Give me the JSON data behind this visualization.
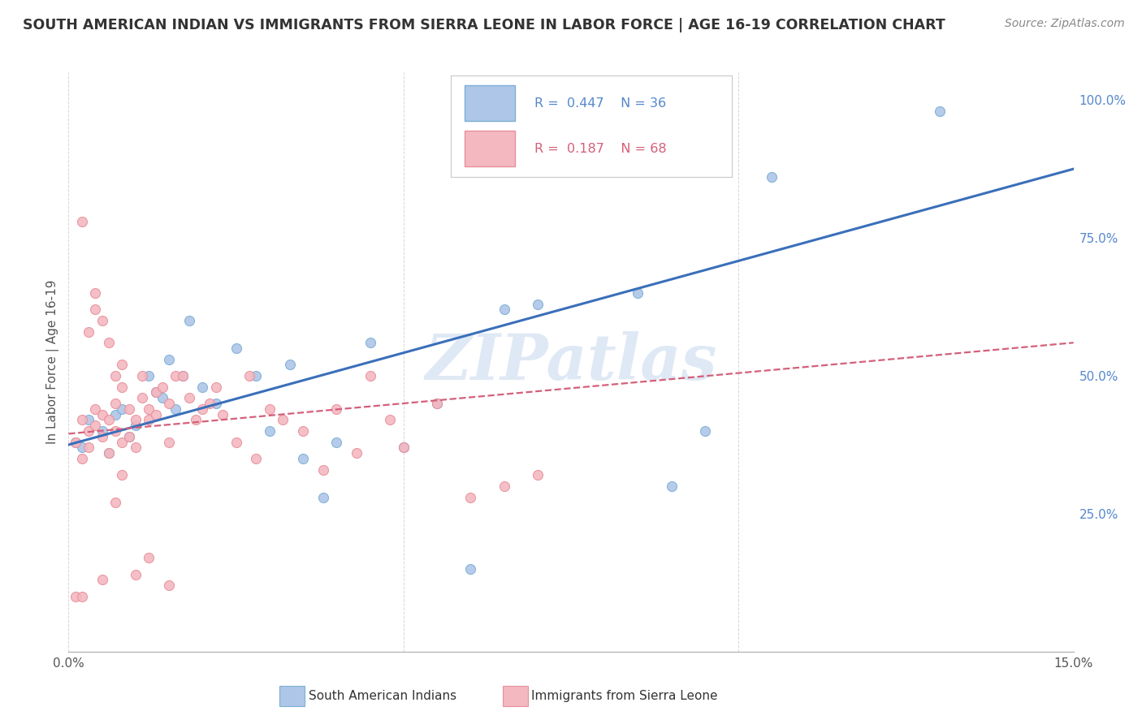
{
  "title": "SOUTH AMERICAN INDIAN VS IMMIGRANTS FROM SIERRA LEONE IN LABOR FORCE | AGE 16-19 CORRELATION CHART",
  "source": "Source: ZipAtlas.com",
  "ylabel": "In Labor Force | Age 16-19",
  "xlim": [
    0.0,
    0.15
  ],
  "ylim": [
    0.0,
    1.05
  ],
  "xticks": [
    0.0,
    0.05,
    0.1,
    0.15
  ],
  "xticklabels": [
    "0.0%",
    "",
    "",
    "15.0%"
  ],
  "yticks_right": [
    0.25,
    0.5,
    0.75,
    1.0
  ],
  "yticklabels_right": [
    "25.0%",
    "50.0%",
    "75.0%",
    "100.0%"
  ],
  "blue_fill": "#aec6e8",
  "blue_edge": "#7bafd4",
  "pink_fill": "#f4b8c1",
  "pink_edge": "#e8909a",
  "blue_line_color": "#3a6fba",
  "pink_line_color": "#d4607a",
  "right_tick_color": "#5588cc",
  "watermark": "ZIPatlas",
  "legend_r1": "R =  0.447",
  "legend_n1": "N = 36",
  "legend_r2": "R =  0.187",
  "legend_n2": "N = 68",
  "blue_scatter_x": [
    0.001,
    0.002,
    0.003,
    0.005,
    0.006,
    0.007,
    0.008,
    0.009,
    0.01,
    0.012,
    0.013,
    0.014,
    0.015,
    0.016,
    0.017,
    0.018,
    0.02,
    0.022,
    0.025,
    0.028,
    0.03,
    0.033,
    0.035,
    0.038,
    0.04,
    0.045,
    0.05,
    0.055,
    0.06,
    0.065,
    0.07,
    0.085,
    0.09,
    0.095,
    0.105,
    0.13
  ],
  "blue_scatter_y": [
    0.38,
    0.37,
    0.42,
    0.4,
    0.36,
    0.43,
    0.44,
    0.39,
    0.41,
    0.5,
    0.47,
    0.46,
    0.53,
    0.44,
    0.5,
    0.6,
    0.48,
    0.45,
    0.55,
    0.5,
    0.4,
    0.52,
    0.35,
    0.28,
    0.38,
    0.56,
    0.37,
    0.45,
    0.15,
    0.62,
    0.63,
    0.65,
    0.3,
    0.4,
    0.86,
    0.98
  ],
  "pink_scatter_x": [
    0.001,
    0.001,
    0.002,
    0.002,
    0.002,
    0.003,
    0.003,
    0.003,
    0.004,
    0.004,
    0.004,
    0.005,
    0.005,
    0.005,
    0.006,
    0.006,
    0.006,
    0.007,
    0.007,
    0.007,
    0.008,
    0.008,
    0.008,
    0.009,
    0.009,
    0.01,
    0.01,
    0.011,
    0.011,
    0.012,
    0.012,
    0.013,
    0.013,
    0.014,
    0.015,
    0.015,
    0.016,
    0.017,
    0.018,
    0.019,
    0.02,
    0.021,
    0.022,
    0.023,
    0.025,
    0.027,
    0.028,
    0.03,
    0.032,
    0.035,
    0.038,
    0.04,
    0.043,
    0.045,
    0.048,
    0.05,
    0.055,
    0.06,
    0.065,
    0.07,
    0.002,
    0.004,
    0.005,
    0.007,
    0.008,
    0.01,
    0.012,
    0.015
  ],
  "pink_scatter_y": [
    0.38,
    0.1,
    0.35,
    0.42,
    0.1,
    0.4,
    0.37,
    0.58,
    0.44,
    0.41,
    0.62,
    0.39,
    0.43,
    0.6,
    0.36,
    0.42,
    0.56,
    0.45,
    0.4,
    0.5,
    0.48,
    0.38,
    0.52,
    0.44,
    0.39,
    0.42,
    0.37,
    0.5,
    0.46,
    0.44,
    0.42,
    0.47,
    0.43,
    0.48,
    0.45,
    0.38,
    0.5,
    0.5,
    0.46,
    0.42,
    0.44,
    0.45,
    0.48,
    0.43,
    0.38,
    0.5,
    0.35,
    0.44,
    0.42,
    0.4,
    0.33,
    0.44,
    0.36,
    0.5,
    0.42,
    0.37,
    0.45,
    0.28,
    0.3,
    0.32,
    0.78,
    0.65,
    0.13,
    0.27,
    0.32,
    0.14,
    0.17,
    0.12
  ],
  "blue_line_x0": 0.0,
  "blue_line_y0": 0.375,
  "blue_line_x1": 0.15,
  "blue_line_y1": 0.875,
  "pink_line_x0": 0.0,
  "pink_line_y0": 0.395,
  "pink_line_x1": 0.15,
  "pink_line_y1": 0.56
}
